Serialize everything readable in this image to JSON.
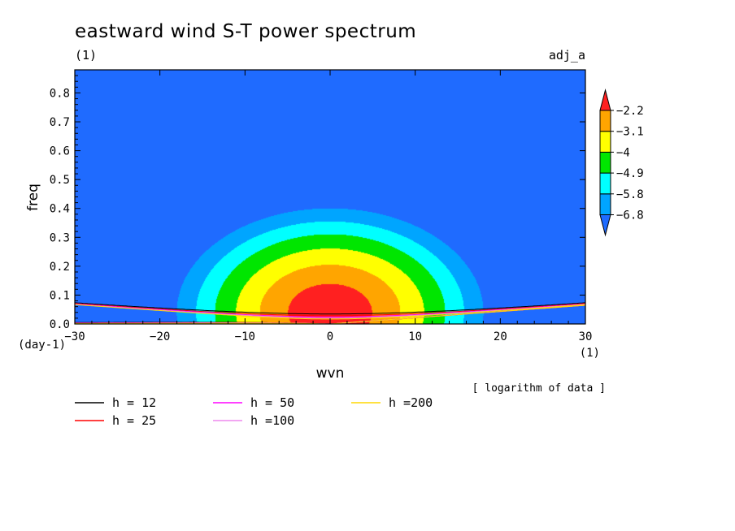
{
  "chart_data": {
    "type": "heatmap",
    "title": "eastward wind S-T power spectrum",
    "subtitle_left": "(1)",
    "subtitle_right": "adj_a",
    "xlabel": "wvn",
    "ylabel": "freq",
    "x_unit": "(1)",
    "y_unit": "(day-1)",
    "note": "[ logarithm of data ]",
    "xlim": [
      -30,
      30
    ],
    "ylim": [
      0,
      0.88
    ],
    "x_ticks": [
      -30,
      -20,
      -10,
      0,
      10,
      20,
      30
    ],
    "x_tick_labels": [
      "−30",
      "−20",
      "−10",
      "0",
      "10",
      "20",
      "30"
    ],
    "y_ticks": [
      0,
      0.1,
      0.2,
      0.3,
      0.4,
      0.5,
      0.6,
      0.7,
      0.8
    ],
    "y_tick_labels": [
      "0.0",
      "0.1",
      "0.2",
      "0.3",
      "0.4",
      "0.5",
      "0.6",
      "0.7",
      "0.8"
    ],
    "colorbar": {
      "levels": [
        -6.8,
        -5.8,
        -4.9,
        -4,
        -3.1,
        -2.2
      ],
      "level_labels": [
        "−6.8",
        "−5.8",
        "−4.9",
        "−4",
        "−3.1",
        "−2.2"
      ],
      "colors": [
        "#1f6bff",
        "#00a5ff",
        "#00ffff",
        "#00e600",
        "#ffff00",
        "#ffa500",
        "#ff2020"
      ]
    },
    "field_model": {
      "peak_value": -1.2,
      "peak_wvn": 0,
      "peak_freq": 0.04,
      "description": "log power, maximum near wvn 0 at low frequency, decreasing outward"
    },
    "dispersion_curves": [
      {
        "label": "h = 12",
        "h": 12,
        "color": "#000000"
      },
      {
        "label": "h = 25",
        "h": 25,
        "color": "#ff0000"
      },
      {
        "label": "h = 50",
        "h": 50,
        "color": "#ff00ff"
      },
      {
        "label": "h =100",
        "h": 100,
        "color": "#ee88ee"
      },
      {
        "label": "h =200",
        "h": 200,
        "color": "#ffd700"
      }
    ]
  }
}
